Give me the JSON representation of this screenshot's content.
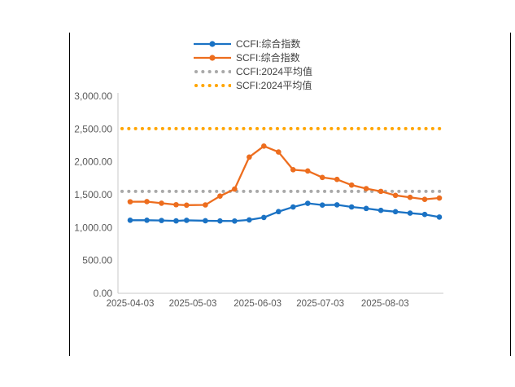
{
  "legend": {
    "items": [
      {
        "label": "CCFI:综合指数",
        "color": "#1a72c4",
        "style": "line-marker"
      },
      {
        "label": "SCFI:综合指数",
        "color": "#ed6d1e",
        "style": "line-marker"
      },
      {
        "label": "CCFI:2024平均值",
        "color": "#a9a9a9",
        "style": "dotted"
      },
      {
        "label": "SCFI:2024平均值",
        "color": "#ffa502",
        "style": "dotted"
      }
    ]
  },
  "chart_data": {
    "type": "line",
    "x": [
      "2025-04-03",
      "2025-04-11",
      "2025-04-18",
      "2025-04-25",
      "2025-04-30",
      "2025-05-09",
      "2025-05-16",
      "2025-05-23",
      "2025-05-30",
      "2025-06-06",
      "2025-06-13",
      "2025-06-20",
      "2025-06-27",
      "2025-07-04",
      "2025-07-11",
      "2025-07-18",
      "2025-07-25",
      "2025-08-01",
      "2025-08-08",
      "2025-08-15",
      "2025-08-22",
      "2025-08-29"
    ],
    "series": [
      {
        "name": "CCFI:综合指数",
        "color": "#1a72c4",
        "values": [
          1112,
          1112,
          1108,
          1102,
          1110,
          1104,
          1101,
          1100,
          1117,
          1154,
          1243,
          1313,
          1369,
          1343,
          1346,
          1314,
          1291,
          1262,
          1242,
          1220,
          1200,
          1160
        ]
      },
      {
        "name": "SCFI:综合指数",
        "color": "#ed6d1e",
        "values": [
          1393,
          1395,
          1371,
          1348,
          1341,
          1345,
          1479,
          1586,
          2073,
          2240,
          2150,
          1880,
          1862,
          1763,
          1733,
          1647,
          1593,
          1551,
          1490,
          1460,
          1430,
          1450
        ]
      }
    ],
    "reference_lines": [
      {
        "name": "CCFI:2024平均值",
        "value": 1551,
        "color": "#a9a9a9"
      },
      {
        "name": "SCFI:2024平均值",
        "value": 2506,
        "color": "#ffa502"
      }
    ],
    "y_axis": {
      "min": 0,
      "max": 3000,
      "ticks": [
        {
          "v": 0,
          "label": "0.00"
        },
        {
          "v": 500,
          "label": "500.00"
        },
        {
          "v": 1000,
          "label": "1,000.00"
        },
        {
          "v": 1500,
          "label": "1,500.00"
        },
        {
          "v": 2000,
          "label": "2,000.00"
        },
        {
          "v": 2500,
          "label": "2,500.00"
        },
        {
          "v": 3000,
          "label": "3,000.00"
        }
      ]
    },
    "x_axis": {
      "ticks": [
        "2025-04-03",
        "2025-05-03",
        "2025-06-03",
        "2025-07-03",
        "2025-08-03"
      ]
    },
    "grid": false,
    "legend_position": "top"
  }
}
